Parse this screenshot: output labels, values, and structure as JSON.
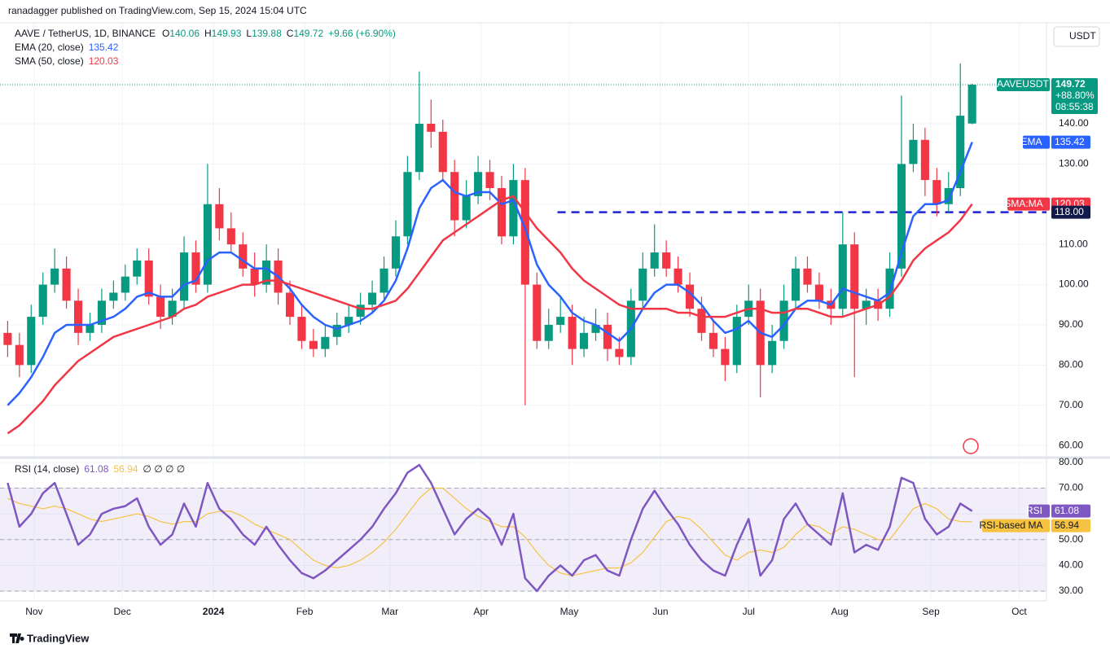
{
  "header": {
    "published": "ranadagger published on TradingView.com, Sep 15, 2024 15:04 UTC",
    "symbol": "AAVE / TetherUS, 1D, BINANCE",
    "ohlc_labels": [
      "O",
      "H",
      "L",
      "C"
    ],
    "change": "+9.66 (+6.90%)",
    "currency": "USDT",
    "footer": "TradingView"
  },
  "chart_data": [
    {
      "type": "candlestick",
      "up_color": "#089981",
      "down_color": "#f23645",
      "grid": true,
      "x": [
        1,
        5,
        9,
        13,
        17,
        21,
        25,
        29,
        33,
        37,
        41,
        45,
        49,
        53,
        57,
        61,
        65,
        69,
        73,
        77,
        81,
        85,
        89,
        93,
        97,
        101,
        105,
        109,
        113,
        117,
        121,
        125,
        129,
        133,
        137,
        141,
        145,
        149,
        153,
        157,
        161,
        165,
        169,
        173,
        177,
        181,
        185,
        189,
        193,
        197,
        201,
        205,
        209,
        213,
        217,
        221,
        225,
        229,
        233,
        237,
        241,
        245,
        249,
        253,
        257,
        261,
        265,
        269,
        273,
        277,
        281,
        285,
        289,
        293,
        297,
        301,
        305,
        309,
        313,
        317,
        321,
        325,
        329
      ],
      "open": [
        88,
        85,
        80,
        92,
        100,
        104,
        96,
        88,
        90,
        96,
        98,
        102,
        106,
        97,
        92,
        96,
        108,
        100,
        120,
        114,
        110,
        104,
        100,
        106,
        98,
        92,
        86,
        84,
        87,
        90,
        92,
        95,
        98,
        104,
        112,
        128,
        140,
        138,
        128,
        116,
        122,
        128,
        124,
        112,
        126,
        100,
        86,
        90,
        92,
        84,
        88,
        90,
        84,
        82,
        96,
        104,
        108,
        104,
        100,
        94,
        88,
        84,
        80,
        92,
        96,
        80,
        86,
        96,
        104,
        100,
        96,
        94,
        110,
        94,
        96,
        94,
        104,
        130,
        136,
        126,
        120,
        124,
        140.06
      ],
      "high": [
        91,
        88,
        95,
        103,
        109,
        107,
        99,
        93,
        99,
        101,
        105,
        109,
        109,
        100,
        99,
        112,
        111,
        130,
        124,
        118,
        113,
        108,
        110,
        109,
        101,
        95,
        89,
        90,
        93,
        95,
        98,
        101,
        107,
        116,
        132,
        153,
        146,
        141,
        131,
        126,
        132,
        131,
        127,
        130,
        129,
        103,
        94,
        97,
        95,
        92,
        94,
        93,
        87,
        99,
        108,
        115,
        111,
        107,
        103,
        97,
        91,
        87,
        95,
        100,
        99,
        90,
        100,
        107,
        107,
        103,
        99,
        118,
        113,
        99,
        99,
        108,
        147,
        140,
        139,
        129,
        128,
        155,
        149.93
      ],
      "low": [
        82,
        77,
        78,
        90,
        98,
        94,
        85,
        86,
        88,
        94,
        96,
        100,
        95,
        89,
        90,
        94,
        98,
        98,
        111,
        108,
        102,
        97,
        98,
        95,
        90,
        84,
        82,
        82,
        85,
        88,
        90,
        93,
        96,
        102,
        110,
        126,
        134,
        126,
        112,
        114,
        120,
        121,
        110,
        110,
        70,
        84,
        84,
        88,
        80,
        82,
        86,
        81,
        80,
        80,
        94,
        102,
        102,
        98,
        92,
        86,
        82,
        76,
        78,
        90,
        72,
        78,
        84,
        94,
        98,
        94,
        90,
        92,
        77,
        90,
        91,
        92,
        102,
        128,
        122,
        117,
        118,
        122,
        139.88
      ],
      "close": [
        85,
        80,
        92,
        100,
        104,
        96,
        88,
        90,
        96,
        98,
        102,
        106,
        97,
        92,
        96,
        108,
        100,
        120,
        114,
        110,
        104,
        100,
        106,
        98,
        92,
        86,
        84,
        87,
        90,
        92,
        95,
        98,
        104,
        112,
        128,
        140,
        138,
        128,
        116,
        122,
        128,
        124,
        112,
        126,
        100,
        86,
        90,
        92,
        84,
        88,
        90,
        84,
        82,
        96,
        104,
        108,
        104,
        100,
        94,
        88,
        84,
        80,
        92,
        96,
        80,
        86,
        96,
        104,
        100,
        96,
        94,
        110,
        94,
        96,
        94,
        104,
        130,
        136,
        126,
        120,
        124,
        142,
        149.72
      ],
      "series": [
        {
          "name": "EMA (20, close)",
          "tag": "EMA",
          "color": "#2962ff",
          "values": [
            70,
            73,
            77,
            82,
            88,
            90,
            90,
            90,
            91,
            92,
            94,
            97,
            98,
            97,
            97,
            100,
            101,
            106,
            108,
            108,
            106,
            104,
            104,
            102,
            99,
            95,
            92,
            90,
            89,
            90,
            91,
            93,
            96,
            101,
            109,
            119,
            124,
            126,
            123,
            122,
            123,
            123,
            120,
            121,
            114,
            105,
            100,
            97,
            93,
            91,
            90,
            88,
            86,
            89,
            94,
            98,
            100,
            100,
            98,
            95,
            91,
            88,
            89,
            91,
            88,
            87,
            90,
            94,
            96,
            96,
            95,
            99,
            98,
            97,
            96,
            98,
            108,
            117,
            120,
            120,
            121,
            128,
            135.42
          ]
        },
        {
          "name": "SMA (50, close)",
          "tag": "SMA:MA",
          "color": "#f23645",
          "values": [
            63,
            65,
            68,
            71,
            75,
            78,
            81,
            83,
            85,
            87,
            88,
            89,
            90,
            91,
            92,
            94,
            95,
            97,
            98,
            99,
            100,
            100,
            101,
            101,
            100,
            99,
            98,
            97,
            96,
            95,
            94,
            94,
            95,
            96,
            99,
            103,
            107,
            111,
            113,
            115,
            117,
            119,
            121,
            122,
            118,
            114,
            111,
            108,
            104,
            101,
            99,
            97,
            95,
            94,
            94,
            94,
            94,
            93,
            93,
            92,
            92,
            92,
            93,
            94,
            94,
            93,
            93,
            94,
            94,
            93,
            92,
            92,
            93,
            94,
            95,
            97,
            101,
            106,
            109,
            111,
            113,
            116,
            120.03
          ]
        }
      ],
      "hline": {
        "value": 118,
        "label": "118.00",
        "from_x": 188,
        "color": "#1e22d8"
      },
      "price_tag": {
        "symbol": "AAVEUSDT",
        "change": "+88.80%",
        "countdown": "08:55:38"
      },
      "xlim": [
        -1.6,
        354.3
      ],
      "xticks": [
        {
          "value": 10,
          "label": "Nov"
        },
        {
          "value": 40,
          "label": "Dec"
        },
        {
          "value": 71,
          "label": "2024"
        },
        {
          "value": 102,
          "label": "Feb"
        },
        {
          "value": 131,
          "label": "Mar"
        },
        {
          "value": 162,
          "label": "Apr"
        },
        {
          "value": 192,
          "label": "May"
        },
        {
          "value": 223,
          "label": "Jun"
        },
        {
          "value": 253,
          "label": "Jul"
        },
        {
          "value": 284,
          "label": "Aug"
        },
        {
          "value": 315,
          "label": "Sep"
        },
        {
          "value": 345,
          "label": "Oct"
        }
      ],
      "ylim": [
        57.4,
        165.1
      ],
      "yticks": [
        {
          "value": 60,
          "label": "60.00"
        },
        {
          "value": 70,
          "label": "70.00"
        },
        {
          "value": 80,
          "label": "80.00"
        },
        {
          "value": 90,
          "label": "90.00"
        },
        {
          "value": 100,
          "label": "100.00"
        },
        {
          "value": 110,
          "label": "110.00"
        },
        {
          "value": 120,
          "label": "120.00"
        },
        {
          "value": 130,
          "label": "130.00"
        },
        {
          "value": 140,
          "label": "140.00"
        }
      ]
    },
    {
      "type": "line",
      "grid": true,
      "legend_extra": "∅ ∅ ∅ ∅",
      "x": [
        1,
        5,
        9,
        13,
        17,
        21,
        25,
        29,
        33,
        37,
        41,
        45,
        49,
        53,
        57,
        61,
        65,
        69,
        73,
        77,
        81,
        85,
        89,
        93,
        97,
        101,
        105,
        109,
        113,
        117,
        121,
        125,
        129,
        133,
        137,
        141,
        145,
        149,
        153,
        157,
        161,
        165,
        169,
        173,
        177,
        181,
        185,
        189,
        193,
        197,
        201,
        205,
        209,
        213,
        217,
        221,
        225,
        229,
        233,
        237,
        241,
        245,
        249,
        253,
        257,
        261,
        265,
        269,
        273,
        277,
        281,
        285,
        289,
        293,
        297,
        301,
        305,
        309,
        313,
        317,
        321,
        325,
        329
      ],
      "series": [
        {
          "name": "RSI (14, close)",
          "tag": "RSI",
          "color": "#7e57c2",
          "values": [
            72,
            55,
            60,
            68,
            72,
            60,
            48,
            52,
            60,
            62,
            63,
            66,
            55,
            48,
            52,
            64,
            55,
            72,
            62,
            58,
            52,
            48,
            55,
            48,
            42,
            37,
            35,
            38,
            42,
            46,
            50,
            55,
            62,
            68,
            76,
            79,
            72,
            62,
            52,
            58,
            62,
            58,
            48,
            60,
            35,
            30,
            36,
            40,
            36,
            42,
            44,
            38,
            36,
            50,
            62,
            69,
            62,
            56,
            48,
            42,
            38,
            36,
            48,
            58,
            36,
            42,
            58,
            64,
            56,
            52,
            48,
            68,
            45,
            48,
            46,
            55,
            74,
            72,
            58,
            52,
            55,
            64,
            61.08
          ]
        },
        {
          "name": "RSI-based MA",
          "tag": "RSI-based MA",
          "color": "#f5c242",
          "values": [
            66,
            64,
            63,
            62,
            63,
            62,
            60,
            58,
            57,
            58,
            59,
            60,
            59,
            57,
            56,
            57,
            57,
            60,
            61,
            61,
            59,
            56,
            54,
            52,
            50,
            46,
            42,
            40,
            39,
            40,
            42,
            45,
            49,
            54,
            60,
            66,
            70,
            70,
            66,
            62,
            59,
            57,
            55,
            55,
            51,
            45,
            40,
            37,
            36,
            37,
            38,
            39,
            39,
            41,
            45,
            51,
            57,
            59,
            58,
            54,
            49,
            44,
            42,
            45,
            46,
            45,
            47,
            52,
            56,
            55,
            52,
            55,
            54,
            52,
            50,
            50,
            56,
            62,
            64,
            62,
            58,
            57,
            56.94
          ]
        }
      ],
      "levels": [
        70,
        50,
        30
      ],
      "xlim": [
        -1.6,
        354.3
      ],
      "ylim": [
        26.2,
        80.9
      ],
      "yticks": [
        {
          "value": 30,
          "label": "30.00"
        },
        {
          "value": 40,
          "label": "40.00"
        },
        {
          "value": 50,
          "label": "50.00"
        },
        {
          "value": 60,
          "label": "60.00"
        },
        {
          "value": 70,
          "label": "70.00"
        },
        {
          "value": 80,
          "label": "80.00"
        }
      ]
    }
  ]
}
